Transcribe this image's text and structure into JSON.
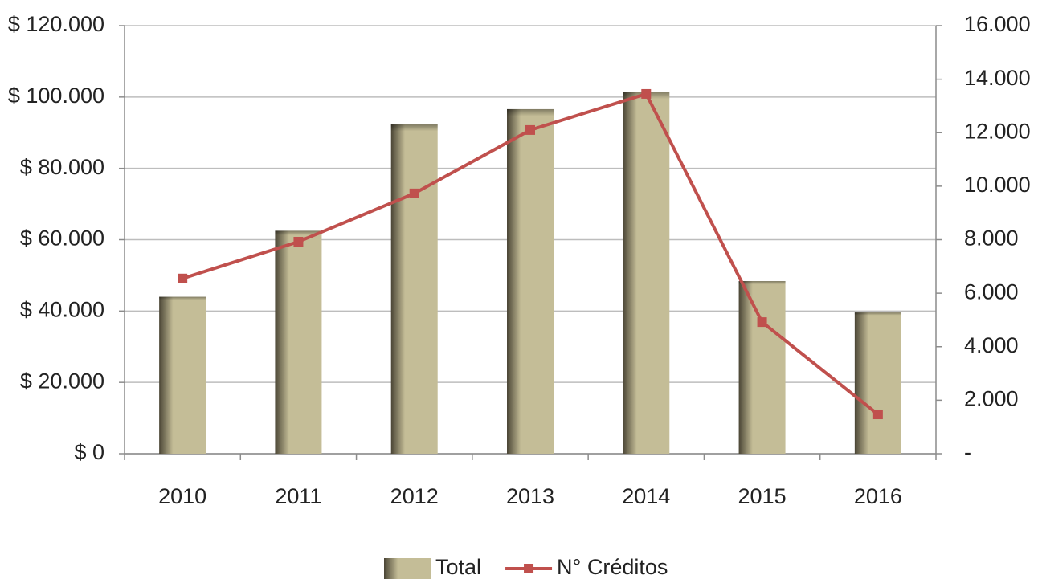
{
  "chart_data": {
    "type": "bar",
    "categories": [
      "2010",
      "2011",
      "2012",
      "2013",
      "2014",
      "2015",
      "2016"
    ],
    "series": [
      {
        "name": "Total",
        "type": "bar",
        "color": "#c4bd97",
        "axis": "y",
        "values": [
          44000,
          62500,
          92300,
          96600,
          101500,
          48400,
          39600
        ]
      },
      {
        "name": "N° Créditos",
        "type": "line",
        "color": "#c0504d",
        "axis": "y2",
        "values": [
          6550,
          7925,
          9730,
          12100,
          13450,
          4920,
          1470
        ]
      }
    ],
    "ylim": [
      0,
      120000
    ],
    "yticks": [
      {
        "value": 0,
        "label": "$ 0"
      },
      {
        "value": 20000,
        "label": "$ 20.000"
      },
      {
        "value": 40000,
        "label": "$ 40.000"
      },
      {
        "value": 60000,
        "label": "$ 60.000"
      },
      {
        "value": 80000,
        "label": "$ 80.000"
      },
      {
        "value": 100000,
        "label": "$ 100.000"
      },
      {
        "value": 120000,
        "label": "$ 120.000"
      }
    ],
    "y2lim": [
      0,
      16000
    ],
    "y2ticks": [
      {
        "value": 0,
        "label": "-"
      },
      {
        "value": 2000,
        "label": "2.000"
      },
      {
        "value": 4000,
        "label": "4.000"
      },
      {
        "value": 6000,
        "label": "6.000"
      },
      {
        "value": 8000,
        "label": "8.000"
      },
      {
        "value": 10000,
        "label": "10.000"
      },
      {
        "value": 12000,
        "label": "12.000"
      },
      {
        "value": 14000,
        "label": "14.000"
      },
      {
        "value": 16000,
        "label": "16.000"
      }
    ],
    "grid": true,
    "legend": "bottom"
  }
}
